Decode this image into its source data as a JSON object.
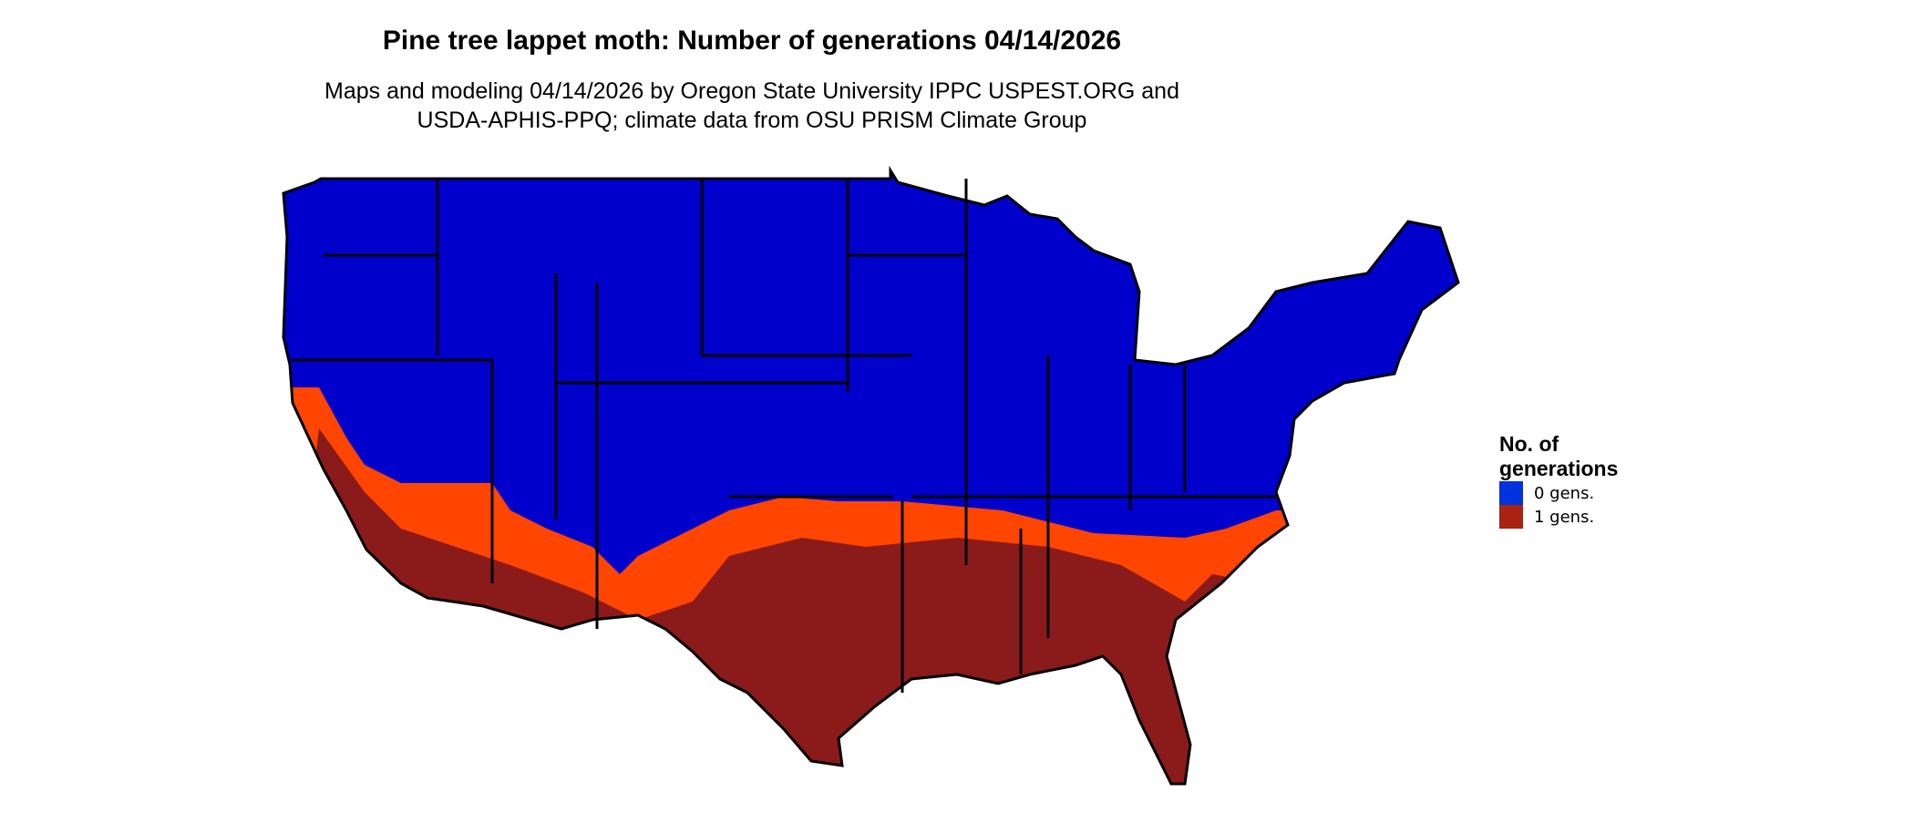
{
  "title": "Pine tree lappet moth: Number of generations 04/14/2026",
  "subtitle_line1": "Maps and modeling 04/14/2026 by Oregon State University IPPC USPEST.ORG and",
  "subtitle_line2": "USDA-APHIS-PPQ; climate data from OSU PRISM Climate Group",
  "legend": {
    "title": "No. of generations",
    "items": [
      {
        "label": "0 gens.",
        "color": "#0033dd"
      },
      {
        "label": "1 gens.",
        "color": "#aa2211"
      }
    ]
  },
  "map_colors": {
    "zero_gens": "#0000cc",
    "transition": "#ff4500",
    "one_gen": "#8b1a1a"
  }
}
